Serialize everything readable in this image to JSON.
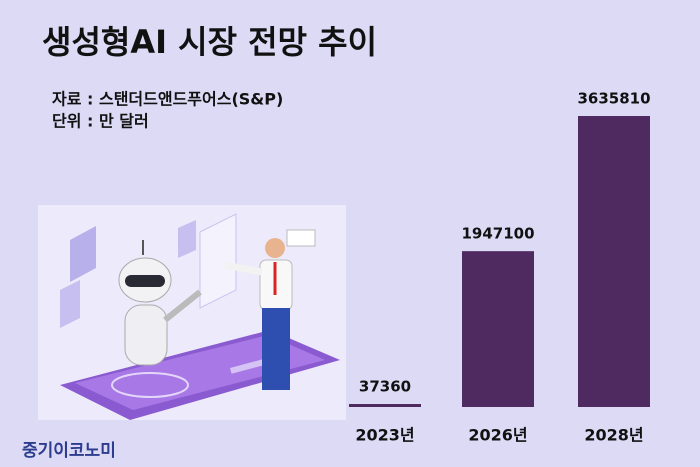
{
  "chart_data": {
    "type": "bar",
    "title": "생성형AI 시장 전망 추이",
    "source": "자료 : 스탠더드앤드푸어스(S&P)",
    "unit": "단위 : 만 달러",
    "categories": [
      "2023년",
      "2026년",
      "2028년"
    ],
    "values": [
      37360,
      1947100,
      3635810
    ],
    "color": "#4e2a61"
  },
  "logo": "중기이코노미"
}
